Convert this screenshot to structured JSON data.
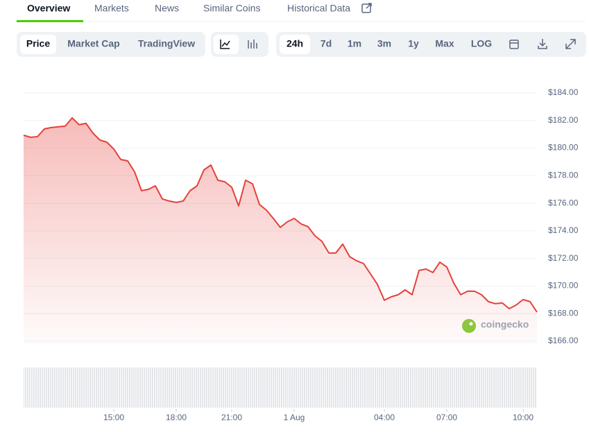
{
  "tabs": [
    "Overview",
    "Markets",
    "News",
    "Similar Coins",
    "Historical Data"
  ],
  "chart_views": [
    "Price",
    "Market Cap",
    "TradingView"
  ],
  "ranges": [
    "24h",
    "7d",
    "1m",
    "3m",
    "1y",
    "Max",
    "LOG"
  ],
  "watermark": "coingecko",
  "chart_data": {
    "type": "line",
    "color": "#e5403a",
    "categories": [
      null,
      null,
      null,
      null,
      null,
      null,
      null,
      null,
      null,
      null,
      null,
      null,
      null,
      "15:00",
      null,
      null,
      null,
      null,
      null,
      null,
      null,
      null,
      "18:00",
      null,
      null,
      null,
      null,
      null,
      null,
      null,
      "21:00",
      null,
      null,
      null,
      null,
      null,
      null,
      null,
      null,
      "1 Aug",
      null,
      null,
      null,
      null,
      null,
      null,
      null,
      null,
      null,
      null,
      null,
      null,
      "04:00",
      null,
      null,
      null,
      null,
      null,
      null,
      null,
      null,
      "07:00",
      null,
      null,
      null,
      null,
      null,
      null,
      null,
      null,
      null,
      null,
      "10:00",
      null,
      null
    ],
    "values": [
      180.93,
      180.78,
      180.83,
      181.39,
      181.49,
      181.54,
      181.59,
      182.19,
      181.69,
      181.79,
      181.08,
      180.58,
      180.43,
      179.93,
      179.17,
      179.07,
      178.27,
      176.91,
      177.01,
      177.26,
      176.31,
      176.16,
      176.06,
      176.16,
      176.91,
      177.26,
      178.42,
      178.77,
      177.67,
      177.56,
      177.16,
      175.81,
      177.67,
      177.41,
      175.91,
      175.5,
      174.9,
      174.25,
      174.65,
      174.9,
      174.5,
      174.3,
      173.64,
      173.24,
      172.39,
      172.39,
      173.04,
      172.13,
      171.83,
      171.63,
      170.88,
      170.12,
      168.97,
      169.22,
      169.37,
      169.72,
      169.37,
      171.13,
      171.23,
      170.98,
      171.73,
      171.38,
      170.22,
      169.37,
      169.62,
      169.62,
      169.37,
      168.87,
      168.72,
      168.77,
      168.36,
      168.62,
      169.02,
      168.87,
      168.11
    ],
    "ylim": [
      165.5,
      184.5
    ],
    "yticks": [
      {
        "value": 166,
        "label": "$166.00"
      },
      {
        "value": 168,
        "label": "$168.00"
      },
      {
        "value": 170,
        "label": "$170.00"
      },
      {
        "value": 172,
        "label": "$172.00"
      },
      {
        "value": 174,
        "label": "$174.00"
      },
      {
        "value": 176,
        "label": "$176.00"
      },
      {
        "value": 178,
        "label": "$178.00"
      },
      {
        "value": 180,
        "label": "$180.00"
      },
      {
        "value": 182,
        "label": "$182.00"
      },
      {
        "value": 184,
        "label": "$184.00"
      }
    ],
    "grid": true
  }
}
